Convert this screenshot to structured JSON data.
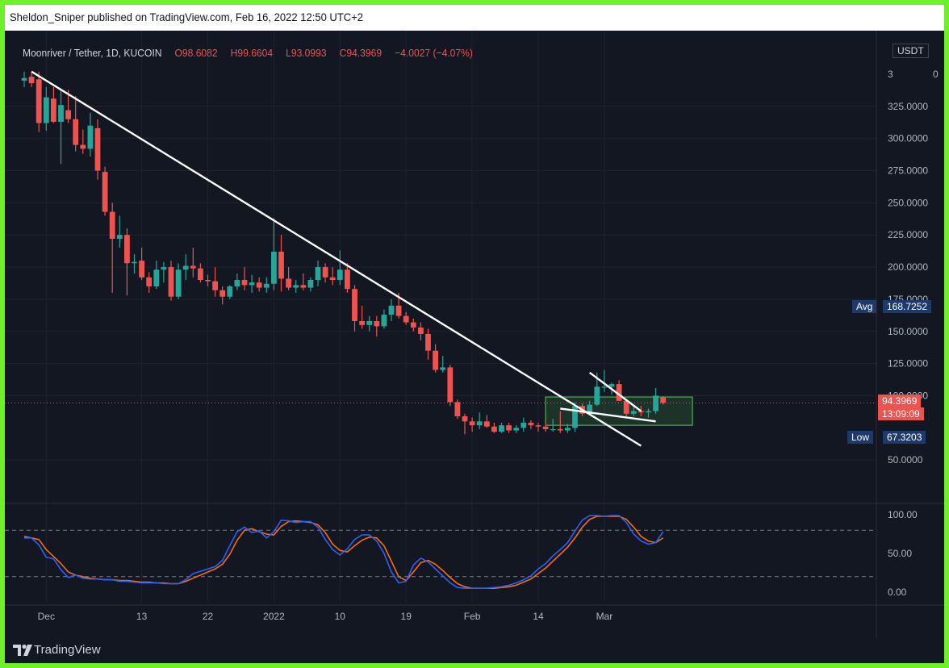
{
  "header": {
    "text": "Sheldon_Sniper published on TradingView.com, Feb 16, 2022 12:50 UTC+2"
  },
  "legend": {
    "symbol": "Moonriver / Tether, 1D, KUCOIN",
    "open": "O98.6082",
    "high": "H99.6604",
    "low": "L93.0993",
    "close": "C94.3969",
    "change": "−4.0027 (−4.07%)"
  },
  "price_axis": {
    "currency": "USDT",
    "labels": [
      "325.0000",
      "300.0000",
      "275.0000",
      "250.0000",
      "225.0000",
      "200.0000",
      "175.0000",
      "150.0000",
      "125.0000",
      "100.0000",
      "50.0000"
    ],
    "label_values": [
      325,
      300,
      275,
      250,
      225,
      200,
      175,
      150,
      125,
      100,
      50
    ],
    "top_label": "3"
  },
  "stoch_axis": {
    "labels": [
      "100.00",
      "50.00",
      "0.00"
    ],
    "label_values": [
      100,
      50,
      0
    ]
  },
  "time_axis": {
    "labels": [
      "Dec",
      "13",
      "22",
      "2022",
      "10",
      "19",
      "Feb",
      "14",
      "Mar"
    ],
    "label_index": [
      3,
      16,
      25,
      34,
      43,
      52,
      61,
      70,
      79
    ]
  },
  "tags": {
    "avg_label": "Avg",
    "avg_value": "168.7252",
    "low_label": "Low",
    "low_value": "67.3203",
    "last_price": "94.3969",
    "countdown": "13:09:09"
  },
  "footer": {
    "brand": "TradingView"
  },
  "colors": {
    "up": "#26a69a",
    "down": "#ef5350",
    "k_line": "#2962ff",
    "d_line": "#ff6d00",
    "trendline": "#ffffff",
    "box": "#4caf50",
    "background": "#131722"
  },
  "chart_data": {
    "type": "candlestick",
    "symbol": "Moonriver / Tether",
    "interval": "1D",
    "exchange": "KUCOIN",
    "ylim": [
      20,
      360
    ],
    "candles": [
      {
        "o": 345,
        "h": 352,
        "l": 340,
        "c": 347
      },
      {
        "o": 348,
        "h": 352,
        "l": 340,
        "c": 343
      },
      {
        "o": 346,
        "h": 352,
        "l": 305,
        "c": 312
      },
      {
        "o": 312,
        "h": 340,
        "l": 306,
        "c": 332
      },
      {
        "o": 331,
        "h": 340,
        "l": 312,
        "c": 313
      },
      {
        "o": 313,
        "h": 338,
        "l": 280,
        "c": 326
      },
      {
        "o": 322,
        "h": 338,
        "l": 312,
        "c": 315
      },
      {
        "o": 315,
        "h": 333,
        "l": 290,
        "c": 295
      },
      {
        "o": 295,
        "h": 307,
        "l": 288,
        "c": 292
      },
      {
        "o": 292,
        "h": 320,
        "l": 286,
        "c": 310
      },
      {
        "o": 308,
        "h": 315,
        "l": 268,
        "c": 275
      },
      {
        "o": 274,
        "h": 278,
        "l": 240,
        "c": 243
      },
      {
        "o": 243,
        "h": 250,
        "l": 180,
        "c": 222
      },
      {
        "o": 222,
        "h": 240,
        "l": 215,
        "c": 225
      },
      {
        "o": 225,
        "h": 230,
        "l": 178,
        "c": 203
      },
      {
        "o": 203,
        "h": 210,
        "l": 195,
        "c": 204
      },
      {
        "o": 205,
        "h": 215,
        "l": 190,
        "c": 192
      },
      {
        "o": 192,
        "h": 196,
        "l": 180,
        "c": 185
      },
      {
        "o": 185,
        "h": 205,
        "l": 183,
        "c": 198
      },
      {
        "o": 198,
        "h": 204,
        "l": 188,
        "c": 200
      },
      {
        "o": 200,
        "h": 205,
        "l": 174,
        "c": 177
      },
      {
        "o": 177,
        "h": 203,
        "l": 175,
        "c": 198
      },
      {
        "o": 198,
        "h": 210,
        "l": 190,
        "c": 201
      },
      {
        "o": 201,
        "h": 215,
        "l": 192,
        "c": 199
      },
      {
        "o": 199,
        "h": 203,
        "l": 188,
        "c": 190
      },
      {
        "o": 190,
        "h": 194,
        "l": 185,
        "c": 189
      },
      {
        "o": 189,
        "h": 200,
        "l": 177,
        "c": 182
      },
      {
        "o": 182,
        "h": 185,
        "l": 171,
        "c": 177
      },
      {
        "o": 177,
        "h": 186,
        "l": 175,
        "c": 185
      },
      {
        "o": 185,
        "h": 195,
        "l": 182,
        "c": 190
      },
      {
        "o": 190,
        "h": 200,
        "l": 182,
        "c": 186
      },
      {
        "o": 186,
        "h": 194,
        "l": 180,
        "c": 188
      },
      {
        "o": 188,
        "h": 192,
        "l": 181,
        "c": 184
      },
      {
        "o": 184,
        "h": 192,
        "l": 180,
        "c": 187
      },
      {
        "o": 187,
        "h": 238,
        "l": 182,
        "c": 212
      },
      {
        "o": 212,
        "h": 225,
        "l": 181,
        "c": 191
      },
      {
        "o": 191,
        "h": 200,
        "l": 182,
        "c": 184
      },
      {
        "o": 184,
        "h": 190,
        "l": 180,
        "c": 186
      },
      {
        "o": 186,
        "h": 195,
        "l": 182,
        "c": 184
      },
      {
        "o": 184,
        "h": 192,
        "l": 181,
        "c": 190
      },
      {
        "o": 190,
        "h": 205,
        "l": 185,
        "c": 200
      },
      {
        "o": 200,
        "h": 203,
        "l": 188,
        "c": 192
      },
      {
        "o": 192,
        "h": 200,
        "l": 186,
        "c": 190
      },
      {
        "o": 190,
        "h": 213,
        "l": 186,
        "c": 198
      },
      {
        "o": 198,
        "h": 203,
        "l": 180,
        "c": 183
      },
      {
        "o": 183,
        "h": 186,
        "l": 150,
        "c": 158
      },
      {
        "o": 158,
        "h": 170,
        "l": 152,
        "c": 155
      },
      {
        "o": 155,
        "h": 162,
        "l": 150,
        "c": 158
      },
      {
        "o": 158,
        "h": 162,
        "l": 146,
        "c": 154
      },
      {
        "o": 154,
        "h": 167,
        "l": 152,
        "c": 163
      },
      {
        "o": 163,
        "h": 175,
        "l": 158,
        "c": 170
      },
      {
        "o": 170,
        "h": 180,
        "l": 160,
        "c": 162
      },
      {
        "o": 162,
        "h": 165,
        "l": 155,
        "c": 157
      },
      {
        "o": 157,
        "h": 160,
        "l": 150,
        "c": 153
      },
      {
        "o": 153,
        "h": 157,
        "l": 143,
        "c": 148
      },
      {
        "o": 148,
        "h": 152,
        "l": 128,
        "c": 135
      },
      {
        "o": 135,
        "h": 140,
        "l": 118,
        "c": 120
      },
      {
        "o": 120,
        "h": 131,
        "l": 118,
        "c": 122
      },
      {
        "o": 122,
        "h": 124,
        "l": 92,
        "c": 95
      },
      {
        "o": 95,
        "h": 97,
        "l": 82,
        "c": 84
      },
      {
        "o": 84,
        "h": 86,
        "l": 70,
        "c": 80
      },
      {
        "o": 80,
        "h": 83,
        "l": 72,
        "c": 77
      },
      {
        "o": 77,
        "h": 87,
        "l": 74,
        "c": 80
      },
      {
        "o": 80,
        "h": 85,
        "l": 75,
        "c": 76
      },
      {
        "o": 76,
        "h": 79,
        "l": 71,
        "c": 72
      },
      {
        "o": 72,
        "h": 79,
        "l": 71,
        "c": 77
      },
      {
        "o": 77,
        "h": 79,
        "l": 71,
        "c": 73
      },
      {
        "o": 73,
        "h": 77,
        "l": 71,
        "c": 75
      },
      {
        "o": 75,
        "h": 83,
        "l": 72,
        "c": 79
      },
      {
        "o": 79,
        "h": 81,
        "l": 74,
        "c": 77
      },
      {
        "o": 77,
        "h": 79,
        "l": 72,
        "c": 76
      },
      {
        "o": 76,
        "h": 80,
        "l": 72,
        "c": 74
      },
      {
        "o": 74,
        "h": 82,
        "l": 72,
        "c": 74
      },
      {
        "o": 74,
        "h": 88,
        "l": 71,
        "c": 73
      },
      {
        "o": 73,
        "h": 78,
        "l": 71,
        "c": 75
      },
      {
        "o": 75,
        "h": 95,
        "l": 72,
        "c": 92
      },
      {
        "o": 92,
        "h": 94,
        "l": 84,
        "c": 86
      },
      {
        "o": 86,
        "h": 96,
        "l": 85,
        "c": 93
      },
      {
        "o": 93,
        "h": 118,
        "l": 92,
        "c": 107
      },
      {
        "o": 107,
        "h": 120,
        "l": 103,
        "c": 107
      },
      {
        "o": 107,
        "h": 110,
        "l": 101,
        "c": 109
      },
      {
        "o": 109,
        "h": 112,
        "l": 96,
        "c": 96
      },
      {
        "o": 96,
        "h": 97,
        "l": 84,
        "c": 86
      },
      {
        "o": 86,
        "h": 92,
        "l": 84,
        "c": 88
      },
      {
        "o": 88,
        "h": 92,
        "l": 84,
        "c": 87
      },
      {
        "o": 87,
        "h": 90,
        "l": 83,
        "c": 88
      },
      {
        "o": 88,
        "h": 106,
        "l": 86,
        "c": 100
      },
      {
        "o": 98.6082,
        "h": 99.6604,
        "l": 93.0993,
        "c": 94.3969
      }
    ],
    "stochastic": {
      "k": [
        70,
        70,
        61,
        45,
        43,
        29,
        19,
        22,
        18,
        17,
        17,
        16,
        16,
        14,
        14,
        13,
        12,
        12,
        12,
        11,
        11,
        11,
        16,
        24,
        27,
        30,
        33,
        41,
        60,
        78,
        84,
        77,
        79,
        70,
        78,
        93,
        92,
        90,
        91,
        91,
        84,
        68,
        55,
        48,
        56,
        68,
        74,
        74,
        66,
        50,
        26,
        12,
        14,
        35,
        44,
        39,
        30,
        21,
        12,
        6,
        5,
        5,
        5,
        5,
        6,
        7,
        9,
        12,
        16,
        21,
        30,
        37,
        47,
        55,
        64,
        79,
        93,
        99,
        99,
        98,
        99,
        99,
        90,
        75,
        66,
        62,
        64,
        78
      ],
      "d": [
        72,
        70,
        68,
        55,
        46,
        37,
        26,
        22,
        20,
        18,
        17,
        16,
        16,
        15,
        15,
        14,
        13,
        13,
        12,
        12,
        11,
        11,
        14,
        18,
        22,
        26,
        30,
        36,
        49,
        67,
        80,
        82,
        78,
        75,
        74,
        85,
        91,
        92,
        91,
        90,
        87,
        77,
        62,
        54,
        52,
        60,
        67,
        71,
        70,
        60,
        40,
        20,
        15,
        26,
        38,
        41,
        36,
        28,
        19,
        11,
        7,
        5,
        5,
        5,
        5,
        6,
        7,
        9,
        13,
        17,
        24,
        31,
        40,
        49,
        58,
        70,
        84,
        94,
        98,
        98,
        98,
        98,
        94,
        84,
        72,
        66,
        64,
        70
      ],
      "ylim": [
        0,
        100
      ],
      "bands": [
        80,
        20
      ]
    },
    "avg": 168.7252,
    "low": 67.3203,
    "last": 94.3969,
    "annotations": {
      "trendline_main": {
        "from": {
          "index": 1,
          "price": 352
        },
        "to": {
          "index": 84,
          "price": 61
        }
      },
      "trendline_flag_top": {
        "from": {
          "index": 77,
          "price": 118
        },
        "to": {
          "index": 84,
          "price": 88
        }
      },
      "trendline_flag_bottom": {
        "from": {
          "index": 73,
          "price": 90
        },
        "to": {
          "index": 86,
          "price": 80
        }
      },
      "range_box": {
        "from_index": 71,
        "to_index": 91,
        "top": 99,
        "bottom": 77
      }
    }
  }
}
